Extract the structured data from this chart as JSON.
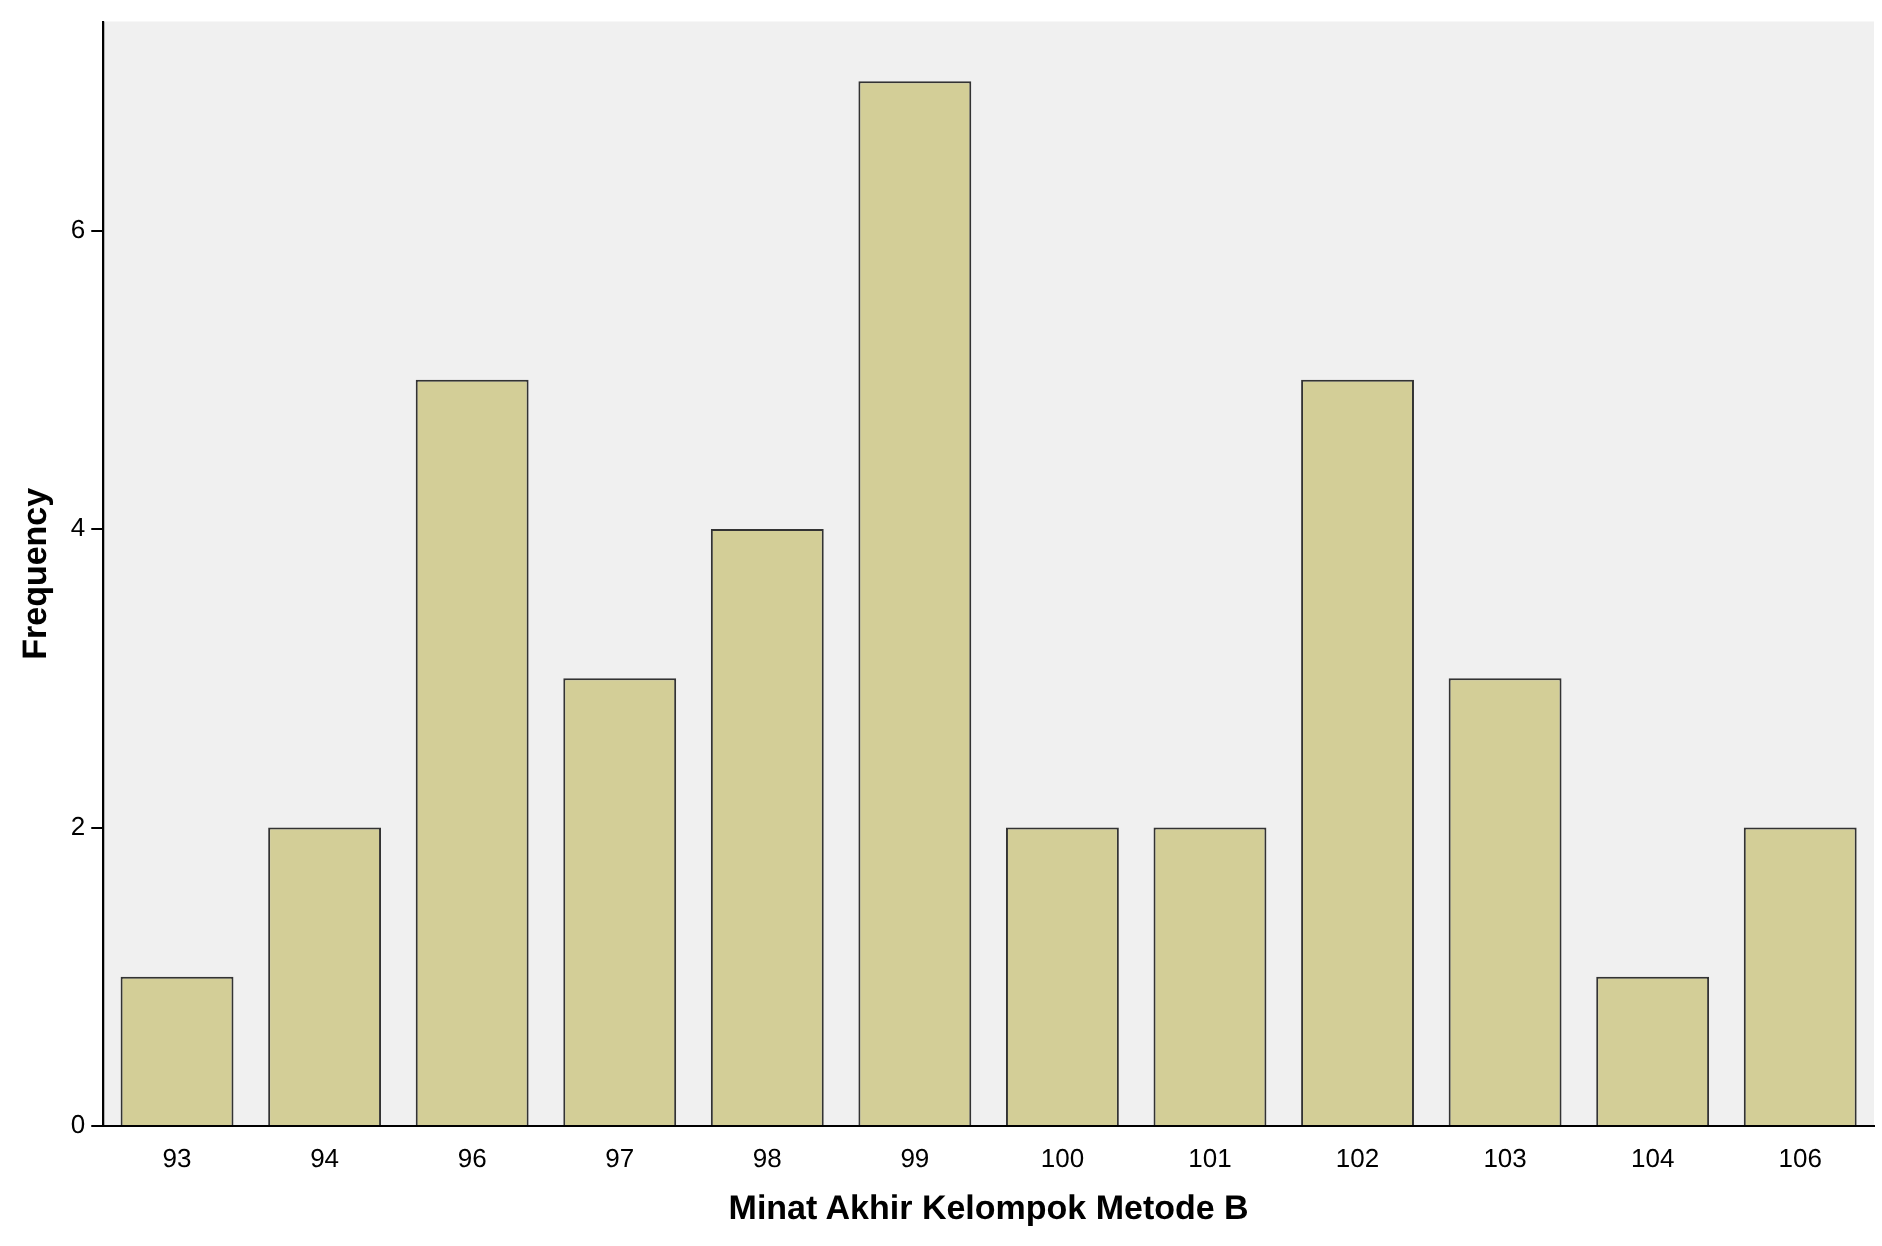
{
  "chart_data": {
    "type": "bar",
    "xlabel": "Minat Akhir Kelompok Metode B",
    "ylabel": "Frequency",
    "categories": [
      "93",
      "94",
      "96",
      "97",
      "98",
      "99",
      "100",
      "101",
      "102",
      "103",
      "104",
      "106"
    ],
    "values": [
      1,
      2,
      5,
      3,
      4,
      7,
      2,
      2,
      5,
      3,
      1,
      2
    ],
    "color": "#d3ce97",
    "ylim": [
      0,
      7.4
    ],
    "yticks": [
      0,
      2,
      4,
      6
    ],
    "grid": false,
    "legend": false
  }
}
